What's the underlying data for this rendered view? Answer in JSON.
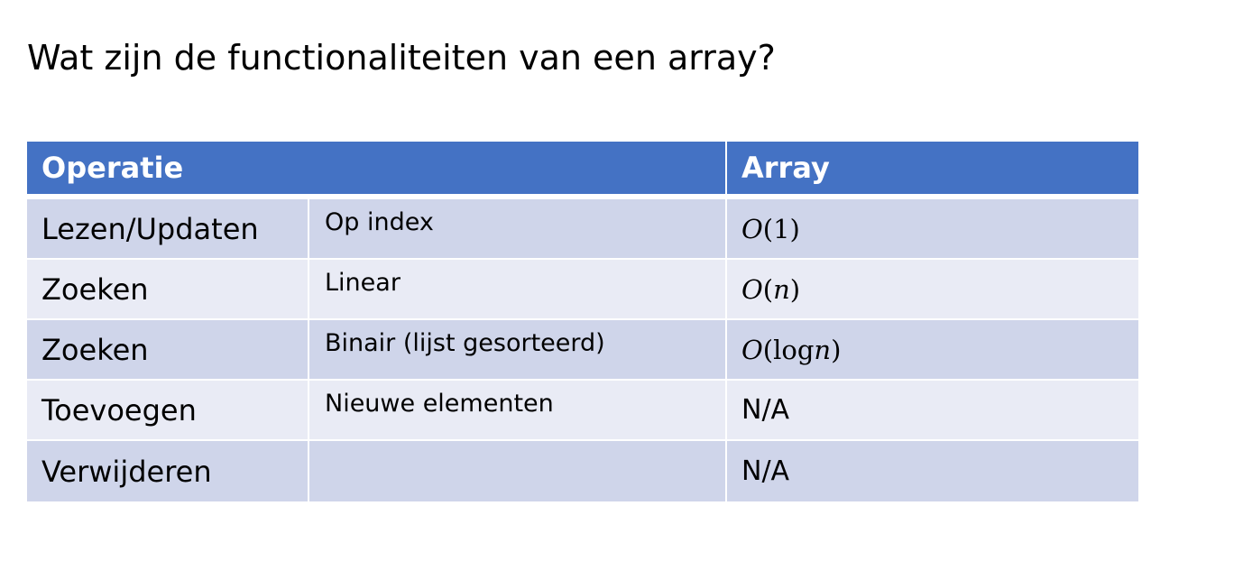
{
  "slide": {
    "title": "Wat zijn de functionaliteiten van een array?"
  },
  "table": {
    "headers": {
      "operatie": "Operatie",
      "array": "Array"
    },
    "rows": [
      {
        "operation": "Lezen/Updaten",
        "detail": "Op index",
        "complexity": "O(1)"
      },
      {
        "operation": "Zoeken",
        "detail": "Linear",
        "complexity": "O(n)"
      },
      {
        "operation": "Zoeken",
        "detail": "Binair (lijst gesorteerd)",
        "complexity": "O(log n)"
      },
      {
        "operation": "Toevoegen",
        "detail": "Nieuwe elementen",
        "complexity": "N/A"
      },
      {
        "operation": "Verwijderen",
        "detail": "",
        "complexity": "N/A"
      }
    ]
  },
  "colors": {
    "header_bg": "#4472c4",
    "row_odd_bg": "#cfd5ea",
    "row_even_bg": "#e9ebf5"
  }
}
